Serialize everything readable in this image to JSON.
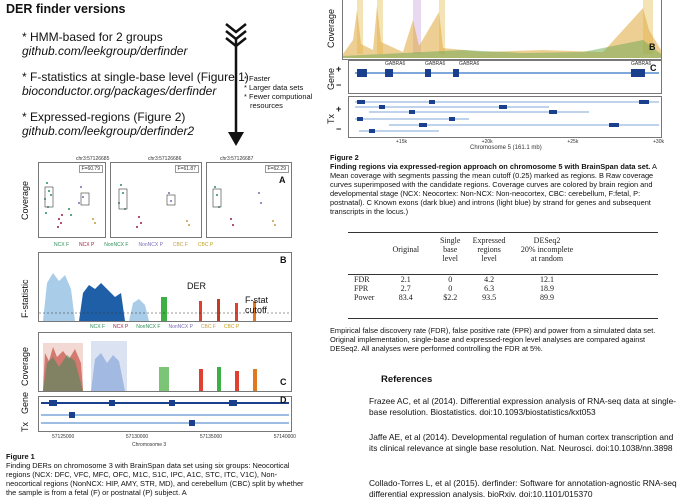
{
  "left": {
    "title": "DER finder versions",
    "items": [
      {
        "text": "* HMM-based for 2 groups",
        "url": "github.com/leekgroup/derfinder"
      },
      {
        "text": "* F-statistics at single-base level (Figure 1)",
        "url": "bioconductor.org/packages/derfinder"
      },
      {
        "text": "* Expressed-regions (Figure 2)",
        "url": "github.com/leekgroup/derfinder2"
      }
    ],
    "arrow_notes": [
      "* Faster",
      "* Larger data sets",
      "* Fewer computional",
      "resources"
    ]
  },
  "figure1": {
    "chr_labels": [
      "chr3:57126685",
      "chr3:57126686",
      "chr3:57126687"
    ],
    "f_labels": [
      "F=60.79",
      "F=61.87",
      "F=62.29"
    ],
    "letters": [
      "A",
      "B",
      "C",
      "D"
    ],
    "coverage_label": "Coverage",
    "fstat_label": "F-statistic",
    "gene_label": "Gene",
    "tx_label": "Tx",
    "legend_a": [
      "NCX F",
      "NCX P",
      "NonNCX F",
      "NonNCX P",
      "CBC F",
      "CBC P"
    ],
    "legend_c": [
      "NCX F",
      "NCX P",
      "NonNCX F",
      "NonNCX P",
      "CBC F",
      "CBC P"
    ],
    "der_label": "DER",
    "fstat_cutoff": "F-stat\ncutoff",
    "x_ticks": [
      "57125000",
      "57130000",
      "57135000",
      "57140000"
    ],
    "x_axis": "Chromosome 3",
    "caption_title": "Figure 1",
    "caption": "Finding DERs on chromosome 3 with BrainSpan data set using six groups: Neocortical regions (NCX: DFC, VFC, MFC, OFC, M1C, S1C, IPC, A1C, STC, ITC, V1C), Non-neocortical regions (NonNCX: HIP, AMY, STR, MD), and cerebellum (CBC) split by whether the sample is from a fetal (F) or postnatal (P) subject. A"
  },
  "figure2": {
    "letters": [
      "B",
      "C"
    ],
    "coverage_label": "Coverage",
    "gene_label": "Gene",
    "tx_label": "Tx",
    "gene_names": [
      "GABRA6",
      "GABRA6",
      "GABRA6",
      "GABRA6"
    ],
    "x_ticks": [
      "+15k",
      "+20k",
      "+25k",
      "+30k"
    ],
    "x_axis": "Chromosome 5 (161.1 mb)",
    "caption_title": "Figure 2",
    "caption_lead": "Finding regions via expressed-region approach on chromosome 5 with BrainSpan data set.",
    "caption": "A Mean coverage with segments passing the mean cutoff (0.25) marked as regions. B Raw coverage curves superimposed with the candidate regions. Coverage curves are colored by brain region and developmental stage (NCX: Neocortex: Non-NCX: Non-neocortex, CBC: cerebellum, F:fetal, P: postnatal). C Known exons (dark blue) and introns (light blue) by strand for genes and subsequent transcripts in the locus.)"
  },
  "table": {
    "headers": [
      [
        "",
        "Original",
        "Single base level",
        "Expressed regions level",
        "DESeq2 20% incomplete at random"
      ]
    ],
    "head_lines": [
      [
        "",
        "",
        "Single",
        "Expressed",
        "DESeq2"
      ],
      [
        "",
        "Original",
        "base",
        "regions",
        "20% incomplete"
      ],
      [
        "",
        "",
        "level",
        "level",
        "at random"
      ]
    ],
    "rows": [
      [
        "FDR",
        "2.1",
        "0",
        "4.2",
        "12.1"
      ],
      [
        "FPR",
        "2.7",
        "0",
        "6.3",
        "18.9"
      ],
      [
        "Power",
        "83.4",
        "$2.2",
        "93.5",
        "89.9"
      ]
    ],
    "note": "Empirical false discovery rate (FDR), false positive rate (FPR) and power from a simulated data set. Original implementation, single-base and expressed-region level analyses are compared against DESeq2. All analyses were performed controlling the FDR at 5%."
  },
  "references": {
    "heading": "References",
    "items": [
      "Frazee AC, et al (2014). Differential expression analysis of RNA-seq data at single-base resolution. Biostatistics. doi:10.1093/biostatistics/kxt053",
      "Jaffe AE, et al (2014). Developmental regulation of human cortex transcription and its clinical relevance at single base resolution. Nat. Neurosci. doi:10.1038/nn.3898",
      "Collado-Torres L, et al (2015). derfinder: Software for annotation-agnostic RNA-seq differential expression analysis. bioRxiv. doi:10.1101/015370"
    ]
  }
}
